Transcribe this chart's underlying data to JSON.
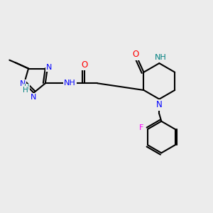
{
  "bg_color": "#ececec",
  "bond_color": "#000000",
  "bond_width": 1.5,
  "atom_colors": {
    "N": "#0000ff",
    "O": "#ff0000",
    "F": "#ff00ff",
    "NH": "#008080",
    "C": "#000000"
  },
  "font_size": 7.5,
  "fig_size": [
    3.0,
    3.0
  ],
  "dpi": 100
}
